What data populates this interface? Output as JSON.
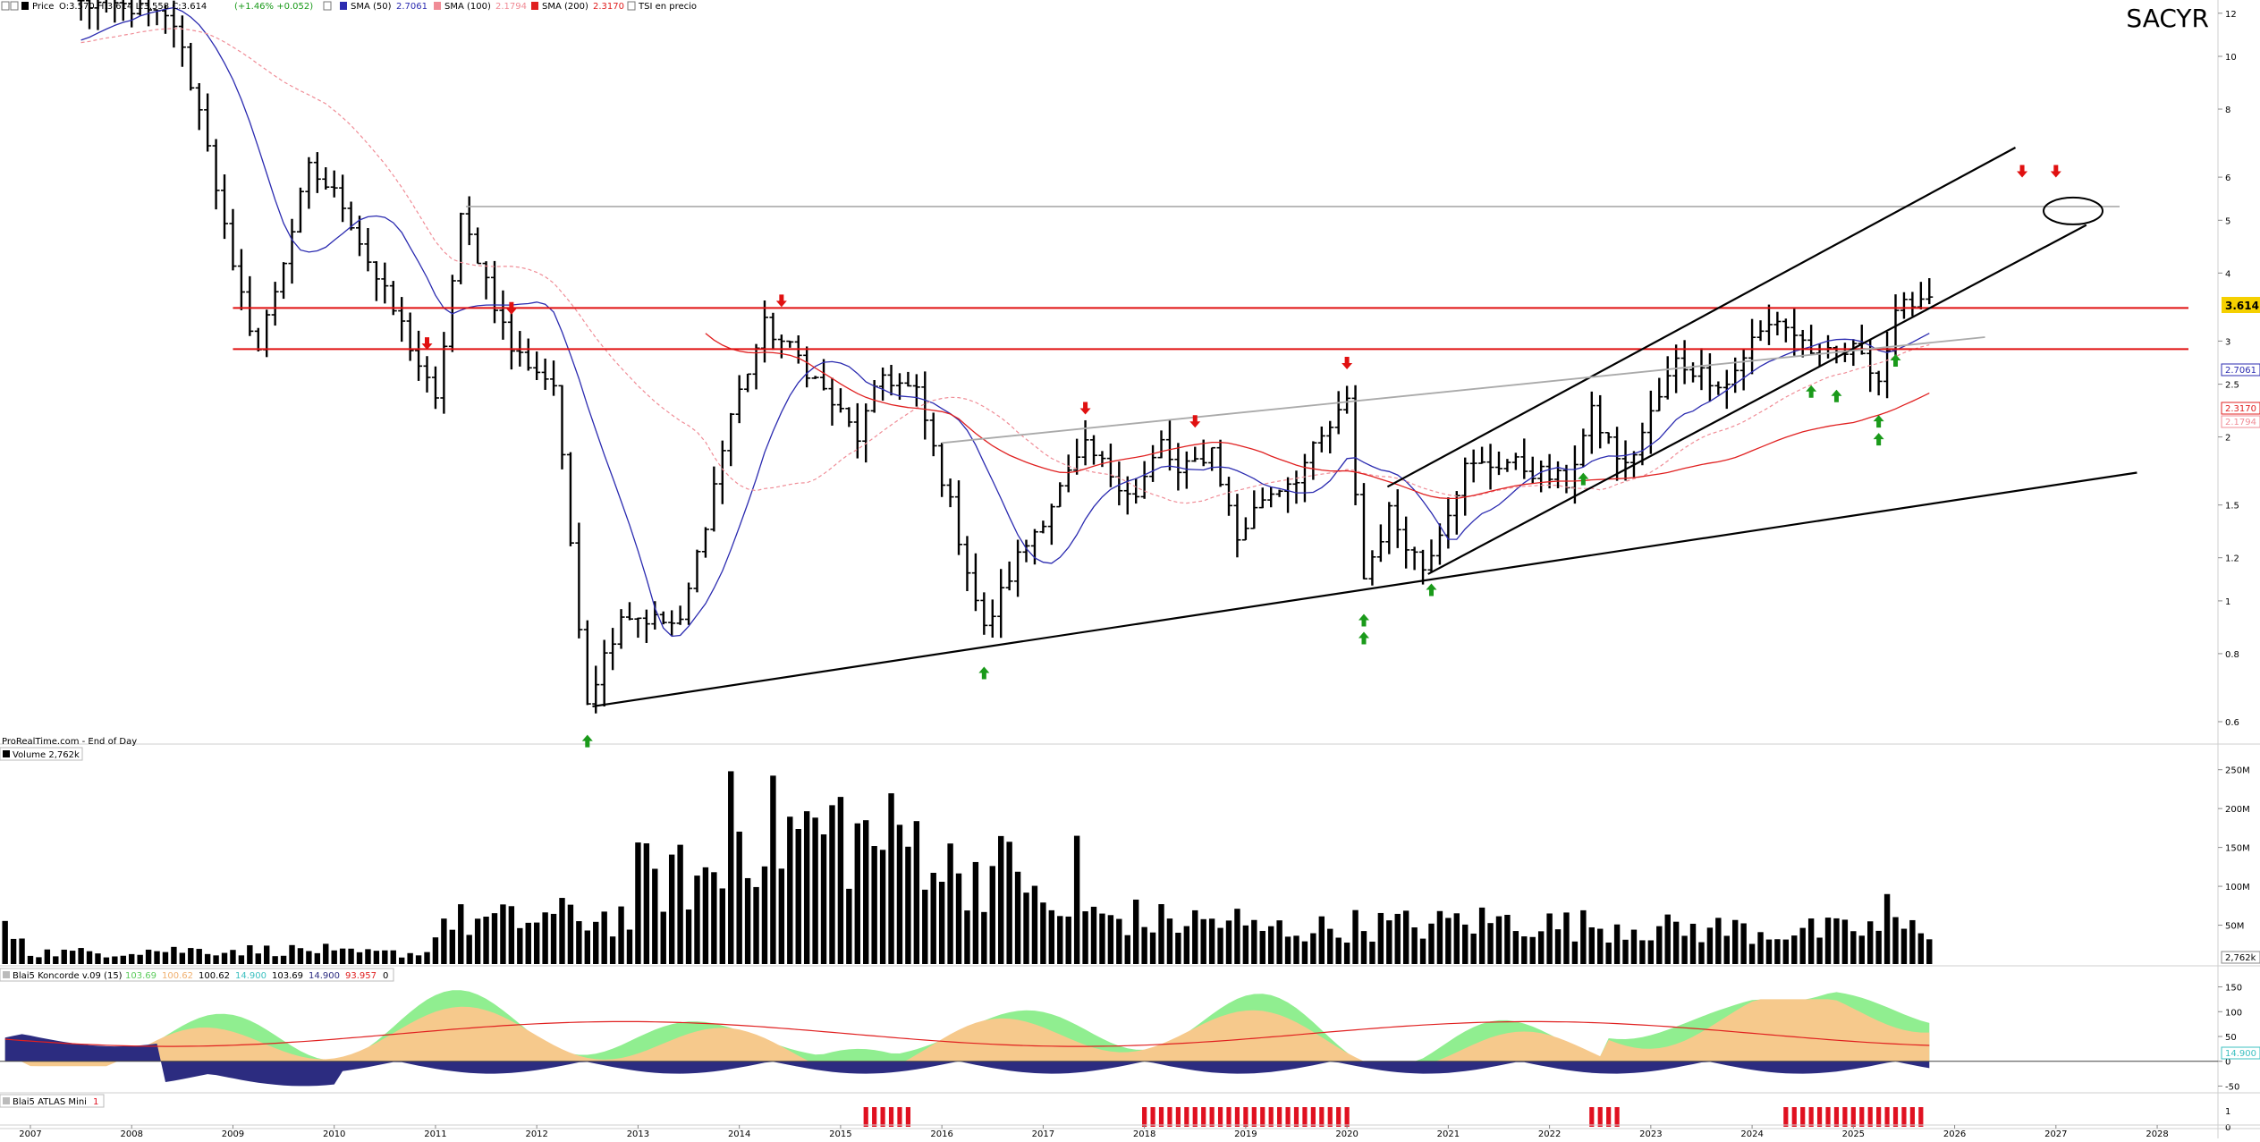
{
  "ticker": "SACYR",
  "price_header": {
    "price_label": "Price",
    "ohlc": "O:3.570 H:3.614 L:3.558 C:3.614",
    "change": "(+1.46% +0.052)",
    "sma50": "SMA (50)",
    "sma50_val": "2.7061",
    "sma100": "SMA (100)",
    "sma100_val": "2.1794",
    "sma200": "SMA (200)",
    "sma200_val": "2.3170",
    "tsi": "TSI en precio"
  },
  "source_label": "ProRealTime.com - End of Day",
  "volume_header": "Volume 2,762k",
  "koncorde_header": {
    "name": "Blai5 Koncorde v.09 (15)",
    "v1": "103.69",
    "v2": "100.62",
    "v3": "100.62",
    "v4": "14.900",
    "v5": "103.69",
    "v6": "14.900",
    "v7": "93.957",
    "v8": "0"
  },
  "atlas_header": {
    "name": "Blai5 ATLAS Mini",
    "value": "1"
  },
  "colors": {
    "sma50": "#2b2bb0",
    "sma100": "#f08c96",
    "sma200": "#e02020",
    "up_arrow": "#1a9a1a",
    "down_arrow": "#e01010",
    "price_badge": "#f5d000",
    "koncorde_green": "#90ee90",
    "koncorde_orange": "#f6c98c",
    "koncorde_blue": "#2c2c80",
    "koncorde_cyan": "#3cc0c0",
    "atlas_red": "#e01020"
  },
  "price_badges": {
    "last": "3.614",
    "sma50": "2.7061",
    "sma200": "2.3170",
    "sma100": "2.1794"
  },
  "volume_last_badge": "2,762k",
  "koncorde_last_badge": "14.900",
  "chart_data": [
    {
      "type": "ohlc-bars",
      "title": "SACYR",
      "frequency": "monthly",
      "y_scale": "log",
      "ylim": [
        0.55,
        12.5
      ],
      "y_ticks": [
        0.6,
        0.8,
        1,
        1.2,
        1.5,
        2,
        2.5,
        3,
        4,
        5,
        6,
        8,
        10,
        12
      ],
      "x_ticks": [
        "2007",
        "2008",
        "2009",
        "2010",
        "2011",
        "2012",
        "2013",
        "2014",
        "2015",
        "2016",
        "2017",
        "2018",
        "2019",
        "2020",
        "2021",
        "2022",
        "2023",
        "2024",
        "2025",
        "2026",
        "2027",
        "2028"
      ],
      "anchors": [
        [
          "2007-07",
          12.5
        ],
        [
          "2008-01",
          12.3
        ],
        [
          "2008-06",
          11.5
        ],
        [
          "2008-10",
          7.0
        ],
        [
          "2009-01",
          4.0
        ],
        [
          "2009-04",
          2.9
        ],
        [
          "2009-10",
          6.2
        ],
        [
          "2010-02",
          5.4
        ],
        [
          "2010-06",
          3.9
        ],
        [
          "2010-09",
          3.2
        ],
        [
          "2011-01",
          2.3
        ],
        [
          "2011-04",
          5.0
        ],
        [
          "2011-06",
          4.3
        ],
        [
          "2011-10",
          2.9
        ],
        [
          "2012-03",
          2.5
        ],
        [
          "2012-07",
          0.66
        ],
        [
          "2012-11",
          0.95
        ],
        [
          "2013-06",
          0.9
        ],
        [
          "2013-12",
          2.2
        ],
        [
          "2014-04",
          3.2
        ],
        [
          "2014-08",
          2.8
        ],
        [
          "2015-03",
          2.0
        ],
        [
          "2015-06",
          2.6
        ],
        [
          "2015-10",
          2.4
        ],
        [
          "2016-02",
          1.5
        ],
        [
          "2016-06",
          0.88
        ],
        [
          "2016-10",
          1.2
        ],
        [
          "2017-03",
          1.6
        ],
        [
          "2017-06",
          1.9
        ],
        [
          "2017-12",
          1.55
        ],
        [
          "2018-03",
          1.95
        ],
        [
          "2018-05",
          1.7
        ],
        [
          "2018-09",
          1.9
        ],
        [
          "2018-12",
          1.3
        ],
        [
          "2019-03",
          1.55
        ],
        [
          "2019-07",
          1.7
        ],
        [
          "2020-01",
          2.3
        ],
        [
          "2020-03",
          1.1
        ],
        [
          "2020-06",
          1.45
        ],
        [
          "2020-10",
          1.15
        ],
        [
          "2021-03",
          1.75
        ],
        [
          "2021-08",
          1.8
        ],
        [
          "2022-03",
          1.65
        ],
        [
          "2022-06",
          2.2
        ],
        [
          "2022-10",
          1.75
        ],
        [
          "2023-04",
          2.75
        ],
        [
          "2023-10",
          2.5
        ],
        [
          "2024-01",
          3.0
        ],
        [
          "2024-04",
          3.3
        ],
        [
          "2024-09",
          2.8
        ],
        [
          "2025-02",
          2.9
        ],
        [
          "2025-04",
          2.55
        ],
        [
          "2025-06",
          3.3
        ],
        [
          "2025-08",
          3.6
        ],
        [
          "2025-10",
          3.614
        ]
      ],
      "series": [
        {
          "name": "SMA (50)",
          "value": "2.7061"
        },
        {
          "name": "SMA (100)",
          "value": "2.1794"
        },
        {
          "name": "SMA (200)",
          "value": "2.3170"
        }
      ],
      "annotations": {
        "horizontal_levels": [
          3.45,
          2.9,
          5.3
        ],
        "up_arrows": [
          "2012-07",
          "2016-06",
          "2020-03",
          "2020-03",
          "2020-11",
          "2022-05",
          "2024-08",
          "2024-11",
          "2025-04",
          "2025-04",
          "2025-06"
        ],
        "down_arrows": [
          "2010-12",
          "2011-10",
          "2014-06",
          "2017-06",
          "2018-07",
          "2020-01",
          "2026-09",
          "2027-01"
        ]
      }
    },
    {
      "type": "bar",
      "title": "Volume",
      "unit": "M",
      "ylim": [
        0,
        260
      ],
      "y_ticks": [
        "50M",
        "100M",
        "150M",
        "200M",
        "250M"
      ],
      "annual_typical_values": {
        "2007": 15,
        "2008": 18,
        "2009": 18,
        "2010": 14,
        "2011": 55,
        "2012": 60,
        "2013": 110,
        "2014": 170,
        "2015": 160,
        "2016": 120,
        "2017": 60,
        "2018": 55,
        "2019": 45,
        "2020": 50,
        "2021": 55,
        "2022": 50,
        "2023": 45,
        "2024": 42,
        "2025": 45
      },
      "peaks": [
        [
          "2013-12",
          248
        ],
        [
          "2015-01",
          215
        ],
        [
          "2017-05",
          165
        ],
        [
          "2025-05",
          90
        ]
      ]
    },
    {
      "type": "area",
      "title": "Blai5 Koncorde v.09 (15)",
      "ylim": [
        -60,
        160
      ],
      "y_ticks": [
        "-50",
        "0",
        "50",
        "100",
        "150"
      ]
    },
    {
      "type": "bar",
      "title": "Blai5 ATLAS Mini",
      "ylim": [
        0,
        1
      ],
      "y_ticks": [
        "0",
        "1"
      ],
      "active_periods": [
        [
          "2015-04",
          "2015-09"
        ],
        [
          "2018-01",
          "2020-01"
        ],
        [
          "2022-06",
          "2022-09"
        ],
        [
          "2024-05",
          "2025-09"
        ]
      ]
    }
  ]
}
